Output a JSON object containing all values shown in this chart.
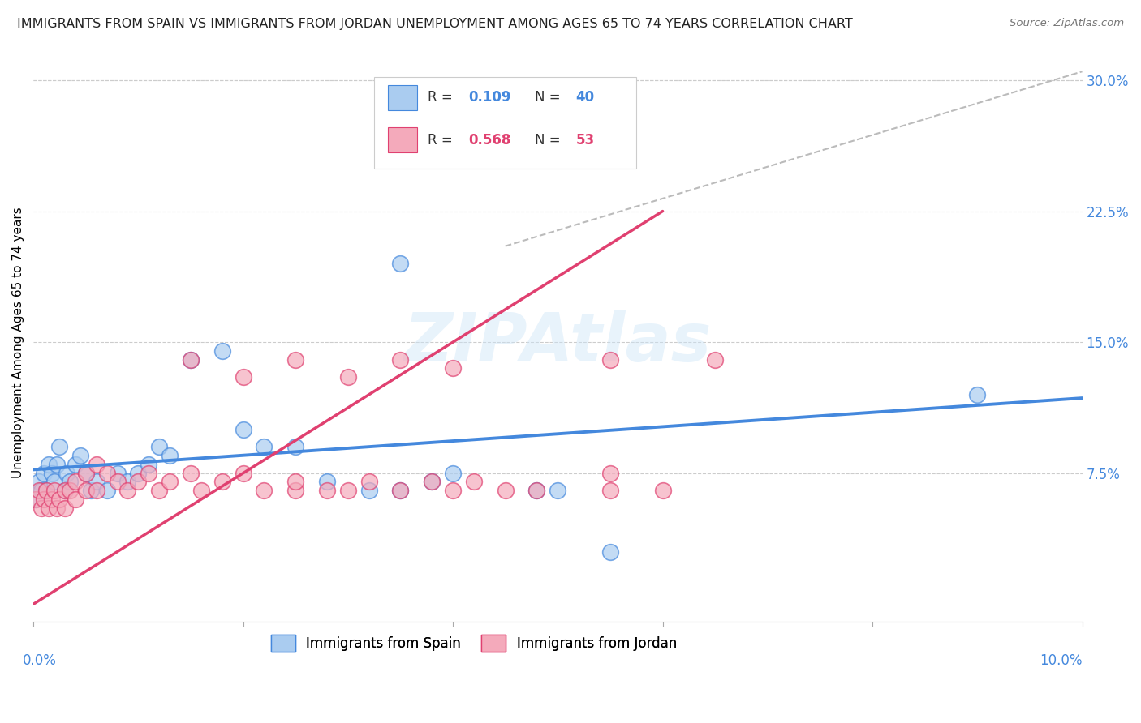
{
  "title": "IMMIGRANTS FROM SPAIN VS IMMIGRANTS FROM JORDAN UNEMPLOYMENT AMONG AGES 65 TO 74 YEARS CORRELATION CHART",
  "source": "Source: ZipAtlas.com",
  "ylabel": "Unemployment Among Ages 65 to 74 years",
  "color_spain": "#aaccf0",
  "color_jordan": "#f4aabb",
  "color_spain_line": "#4488dd",
  "color_jordan_line": "#e04070",
  "color_dashed": "#bbbbbb",
  "xlim": [
    0.0,
    0.1
  ],
  "ylim": [
    -0.01,
    0.31
  ],
  "spain_x": [
    0.0002,
    0.0005,
    0.0008,
    0.001,
    0.0012,
    0.0015,
    0.0018,
    0.002,
    0.0022,
    0.0025,
    0.003,
    0.0032,
    0.0035,
    0.004,
    0.0045,
    0.005,
    0.0055,
    0.006,
    0.007,
    0.008,
    0.009,
    0.01,
    0.011,
    0.012,
    0.013,
    0.015,
    0.018,
    0.02,
    0.022,
    0.025,
    0.028,
    0.032,
    0.035,
    0.038,
    0.04,
    0.048,
    0.05,
    0.055,
    0.09,
    0.035
  ],
  "spain_y": [
    0.06,
    0.07,
    0.065,
    0.075,
    0.065,
    0.08,
    0.075,
    0.07,
    0.08,
    0.09,
    0.065,
    0.075,
    0.07,
    0.08,
    0.085,
    0.075,
    0.065,
    0.07,
    0.065,
    0.075,
    0.07,
    0.075,
    0.08,
    0.09,
    0.085,
    0.14,
    0.145,
    0.1,
    0.09,
    0.09,
    0.07,
    0.065,
    0.065,
    0.07,
    0.075,
    0.065,
    0.065,
    0.03,
    0.12,
    0.195
  ],
  "jordan_x": [
    0.0002,
    0.0005,
    0.0008,
    0.001,
    0.0012,
    0.0015,
    0.0018,
    0.002,
    0.0022,
    0.0025,
    0.003,
    0.003,
    0.0035,
    0.004,
    0.004,
    0.005,
    0.005,
    0.006,
    0.006,
    0.007,
    0.008,
    0.009,
    0.01,
    0.011,
    0.012,
    0.013,
    0.015,
    0.016,
    0.018,
    0.02,
    0.022,
    0.025,
    0.025,
    0.028,
    0.03,
    0.032,
    0.035,
    0.038,
    0.04,
    0.042,
    0.045,
    0.048,
    0.055,
    0.055,
    0.06,
    0.015,
    0.02,
    0.025,
    0.03,
    0.035,
    0.04,
    0.055,
    0.065
  ],
  "jordan_y": [
    0.06,
    0.065,
    0.055,
    0.06,
    0.065,
    0.055,
    0.06,
    0.065,
    0.055,
    0.06,
    0.065,
    0.055,
    0.065,
    0.06,
    0.07,
    0.065,
    0.075,
    0.065,
    0.08,
    0.075,
    0.07,
    0.065,
    0.07,
    0.075,
    0.065,
    0.07,
    0.075,
    0.065,
    0.07,
    0.075,
    0.065,
    0.065,
    0.07,
    0.065,
    0.065,
    0.07,
    0.065,
    0.07,
    0.065,
    0.07,
    0.065,
    0.065,
    0.075,
    0.065,
    0.065,
    0.14,
    0.13,
    0.14,
    0.13,
    0.14,
    0.135,
    0.14,
    0.14
  ],
  "spain_line_x0": 0.0,
  "spain_line_y0": 0.077,
  "spain_line_x1": 0.1,
  "spain_line_y1": 0.118,
  "jordan_line_x0": 0.0,
  "jordan_line_y0": 0.0,
  "jordan_line_x1": 0.06,
  "jordan_line_y1": 0.225,
  "dash_line_x0": 0.045,
  "dash_line_y0": 0.205,
  "dash_line_x1": 0.1,
  "dash_line_y1": 0.305
}
